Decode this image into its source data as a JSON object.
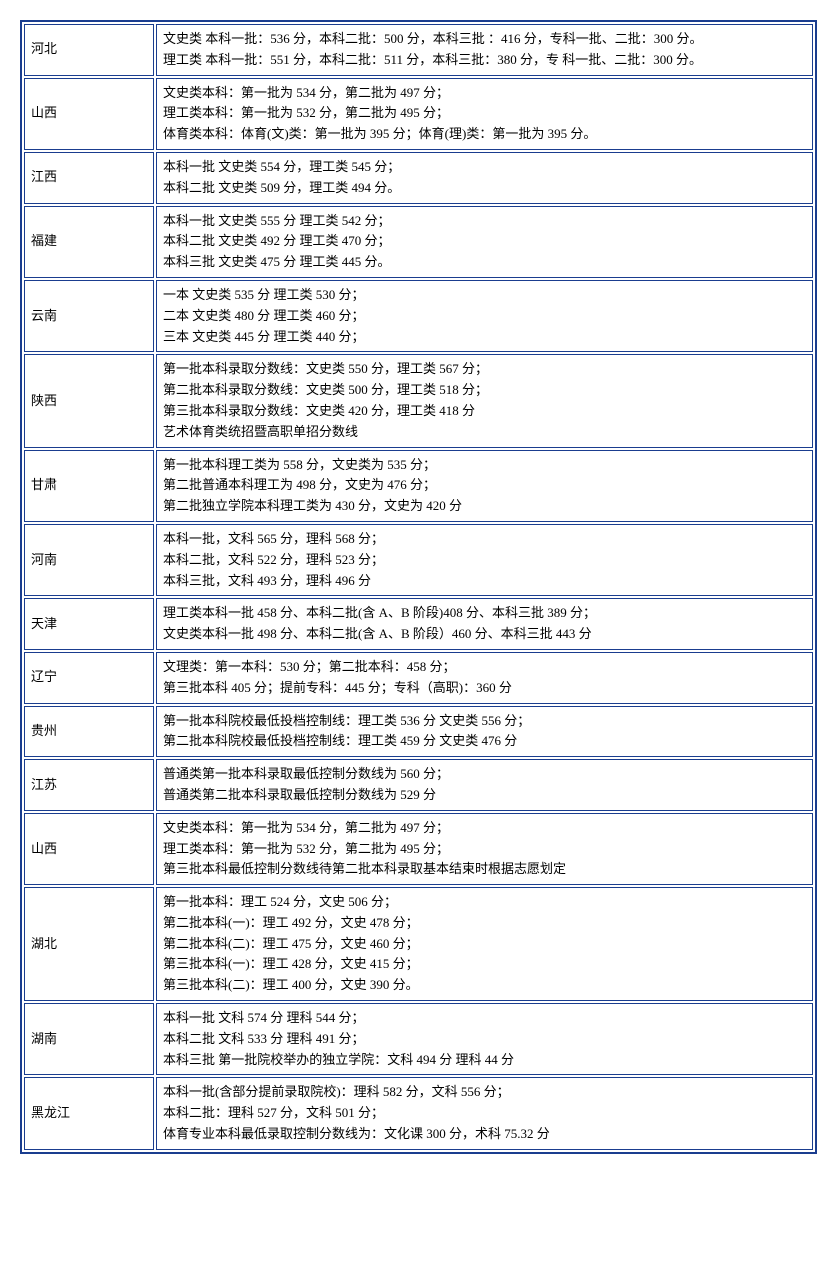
{
  "table": {
    "border_color": "#1a3d8f",
    "background_color": "#ffffff",
    "font_size": 13,
    "font_family": "SimSun",
    "province_col_width": 130,
    "rows": [
      {
        "province": "河北",
        "lines": [
          "文史类 本科一批：536 分，本科二批：500 分，本科三批 ：416 分，专科一批、二批：300 分。",
          "理工类 本科一批：551 分，本科二批：511 分，本科三批：380 分，专 科一批、二批：300 分。"
        ]
      },
      {
        "province": "山西",
        "lines": [
          "文史类本科：第一批为 534 分，第二批为 497 分；",
          "理工类本科：第一批为 532 分，第二批为 495 分；",
          "体育类本科：体育(文)类：第一批为 395 分；体育(理)类：第一批为 395 分。"
        ]
      },
      {
        "province": "江西",
        "lines": [
          "本科一批 文史类 554 分，理工类 545 分；",
          "本科二批 文史类 509 分，理工类 494 分。"
        ]
      },
      {
        "province": "福建",
        "lines": [
          "本科一批 文史类 555 分 理工类 542 分；",
          "本科二批 文史类 492 分 理工类 470 分；",
          "本科三批 文史类 475 分 理工类 445 分。"
        ]
      },
      {
        "province": "云南",
        "lines": [
          "一本 文史类 535 分 理工类 530 分；",
          "二本 文史类 480 分 理工类 460 分；",
          "三本 文史类 445 分 理工类 440 分；"
        ]
      },
      {
        "province": "陕西",
        "lines": [
          "第一批本科录取分数线：文史类 550 分，理工类 567 分；",
          "第二批本科录取分数线：文史类 500 分，理工类 518 分；",
          "第三批本科录取分数线：文史类 420 分，理工类 418 分",
          "艺术体育类统招暨高职单招分数线"
        ]
      },
      {
        "province": "甘肃",
        "lines": [
          "第一批本科理工类为 558 分，文史类为 535 分；",
          "第二批普通本科理工为 498 分，文史为 476 分；",
          "第二批独立学院本科理工类为 430 分，文史为 420 分"
        ]
      },
      {
        "province": "河南",
        "lines": [
          "本科一批，文科 565 分，理科 568 分；",
          "本科二批，文科 522 分，理科 523 分；",
          "本科三批，文科 493 分，理科 496 分"
        ]
      },
      {
        "province": "天津",
        "lines": [
          "理工类本科一批 458 分、本科二批(含 A、B 阶段)408 分、本科三批 389 分；",
          "文史类本科一批 498 分、本科二批(含 A、B 阶段）460 分、本科三批 443 分"
        ]
      },
      {
        "province": "辽宁",
        "lines": [
          "文理类：第一本科：530 分；第二批本科：458 分；",
          "第三批本科 405 分；提前专科：445 分；专科（高职)：360 分"
        ]
      },
      {
        "province": "贵州",
        "lines": [
          "第一批本科院校最低投档控制线：理工类 536 分 文史类 556 分；",
          "第二批本科院校最低投档控制线：理工类 459 分 文史类 476 分"
        ]
      },
      {
        "province": "江苏",
        "lines": [
          "普通类第一批本科录取最低控制分数线为 560 分；",
          "普通类第二批本科录取最低控制分数线为 529 分"
        ]
      },
      {
        "province": "山西",
        "lines": [
          "文史类本科：第一批为 534 分，第二批为 497 分；",
          "理工类本科：第一批为 532 分，第二批为 495 分；",
          "第三批本科最低控制分数线待第二批本科录取基本结束时根据志愿划定"
        ]
      },
      {
        "province": "湖北",
        "lines": [
          "第一批本科：理工 524 分，文史 506 分；",
          "第二批本科(一)：理工 492 分，文史 478 分；",
          "第二批本科(二)：理工 475 分，文史 460 分；",
          "第三批本科(一)：理工 428 分，文史 415 分；",
          "第三批本科(二)：理工 400 分，文史 390 分。"
        ]
      },
      {
        "province": "湖南",
        "lines": [
          "本科一批 文科 574 分 理科 544 分；",
          "本科二批 文科 533 分 理科 491 分；",
          "本科三批 第一批院校举办的独立学院：文科 494 分 理科 44 分"
        ]
      },
      {
        "province": "黑龙江",
        "lines": [
          "本科一批(含部分提前录取院校)：理科 582 分，文科 556 分；",
          "本科二批：理科 527 分，文科 501 分；",
          "体育专业本科最低录取控制分数线为：文化课 300 分，术科 75.32 分"
        ]
      }
    ]
  }
}
